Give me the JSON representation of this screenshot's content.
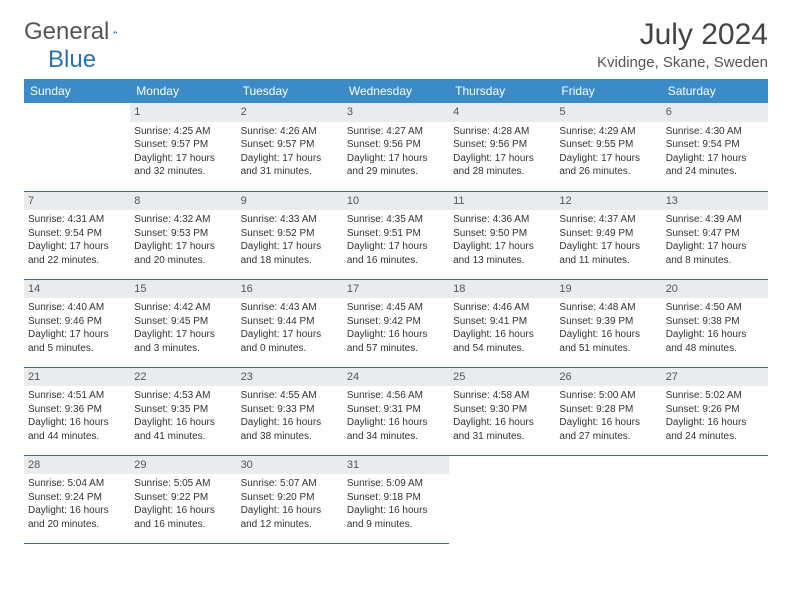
{
  "brand": {
    "text1": "General",
    "text2": "Blue"
  },
  "title": "July 2024",
  "location": "Kvidinge, Skane, Sweden",
  "colors": {
    "header_bg": "#3b8bc9",
    "header_text": "#ffffff",
    "daynum_bg": "#e9ecef",
    "border": "#2c6fb5",
    "brand_blue": "#2c6fb5"
  },
  "layout": {
    "first_weekday_index": 1,
    "days_in_month": 31,
    "weekday_labels": [
      "Sunday",
      "Monday",
      "Tuesday",
      "Wednesday",
      "Thursday",
      "Friday",
      "Saturday"
    ]
  },
  "days": [
    {
      "n": 1,
      "sunrise": "4:25 AM",
      "sunset": "9:57 PM",
      "daylight": "17 hours and 32 minutes."
    },
    {
      "n": 2,
      "sunrise": "4:26 AM",
      "sunset": "9:57 PM",
      "daylight": "17 hours and 31 minutes."
    },
    {
      "n": 3,
      "sunrise": "4:27 AM",
      "sunset": "9:56 PM",
      "daylight": "17 hours and 29 minutes."
    },
    {
      "n": 4,
      "sunrise": "4:28 AM",
      "sunset": "9:56 PM",
      "daylight": "17 hours and 28 minutes."
    },
    {
      "n": 5,
      "sunrise": "4:29 AM",
      "sunset": "9:55 PM",
      "daylight": "17 hours and 26 minutes."
    },
    {
      "n": 6,
      "sunrise": "4:30 AM",
      "sunset": "9:54 PM",
      "daylight": "17 hours and 24 minutes."
    },
    {
      "n": 7,
      "sunrise": "4:31 AM",
      "sunset": "9:54 PM",
      "daylight": "17 hours and 22 minutes."
    },
    {
      "n": 8,
      "sunrise": "4:32 AM",
      "sunset": "9:53 PM",
      "daylight": "17 hours and 20 minutes."
    },
    {
      "n": 9,
      "sunrise": "4:33 AM",
      "sunset": "9:52 PM",
      "daylight": "17 hours and 18 minutes."
    },
    {
      "n": 10,
      "sunrise": "4:35 AM",
      "sunset": "9:51 PM",
      "daylight": "17 hours and 16 minutes."
    },
    {
      "n": 11,
      "sunrise": "4:36 AM",
      "sunset": "9:50 PM",
      "daylight": "17 hours and 13 minutes."
    },
    {
      "n": 12,
      "sunrise": "4:37 AM",
      "sunset": "9:49 PM",
      "daylight": "17 hours and 11 minutes."
    },
    {
      "n": 13,
      "sunrise": "4:39 AM",
      "sunset": "9:47 PM",
      "daylight": "17 hours and 8 minutes."
    },
    {
      "n": 14,
      "sunrise": "4:40 AM",
      "sunset": "9:46 PM",
      "daylight": "17 hours and 5 minutes."
    },
    {
      "n": 15,
      "sunrise": "4:42 AM",
      "sunset": "9:45 PM",
      "daylight": "17 hours and 3 minutes."
    },
    {
      "n": 16,
      "sunrise": "4:43 AM",
      "sunset": "9:44 PM",
      "daylight": "17 hours and 0 minutes."
    },
    {
      "n": 17,
      "sunrise": "4:45 AM",
      "sunset": "9:42 PM",
      "daylight": "16 hours and 57 minutes."
    },
    {
      "n": 18,
      "sunrise": "4:46 AM",
      "sunset": "9:41 PM",
      "daylight": "16 hours and 54 minutes."
    },
    {
      "n": 19,
      "sunrise": "4:48 AM",
      "sunset": "9:39 PM",
      "daylight": "16 hours and 51 minutes."
    },
    {
      "n": 20,
      "sunrise": "4:50 AM",
      "sunset": "9:38 PM",
      "daylight": "16 hours and 48 minutes."
    },
    {
      "n": 21,
      "sunrise": "4:51 AM",
      "sunset": "9:36 PM",
      "daylight": "16 hours and 44 minutes."
    },
    {
      "n": 22,
      "sunrise": "4:53 AM",
      "sunset": "9:35 PM",
      "daylight": "16 hours and 41 minutes."
    },
    {
      "n": 23,
      "sunrise": "4:55 AM",
      "sunset": "9:33 PM",
      "daylight": "16 hours and 38 minutes."
    },
    {
      "n": 24,
      "sunrise": "4:56 AM",
      "sunset": "9:31 PM",
      "daylight": "16 hours and 34 minutes."
    },
    {
      "n": 25,
      "sunrise": "4:58 AM",
      "sunset": "9:30 PM",
      "daylight": "16 hours and 31 minutes."
    },
    {
      "n": 26,
      "sunrise": "5:00 AM",
      "sunset": "9:28 PM",
      "daylight": "16 hours and 27 minutes."
    },
    {
      "n": 27,
      "sunrise": "5:02 AM",
      "sunset": "9:26 PM",
      "daylight": "16 hours and 24 minutes."
    },
    {
      "n": 28,
      "sunrise": "5:04 AM",
      "sunset": "9:24 PM",
      "daylight": "16 hours and 20 minutes."
    },
    {
      "n": 29,
      "sunrise": "5:05 AM",
      "sunset": "9:22 PM",
      "daylight": "16 hours and 16 minutes."
    },
    {
      "n": 30,
      "sunrise": "5:07 AM",
      "sunset": "9:20 PM",
      "daylight": "16 hours and 12 minutes."
    },
    {
      "n": 31,
      "sunrise": "5:09 AM",
      "sunset": "9:18 PM",
      "daylight": "16 hours and 9 minutes."
    }
  ],
  "labels": {
    "sunrise": "Sunrise: ",
    "sunset": "Sunset: ",
    "daylight": "Daylight: "
  }
}
